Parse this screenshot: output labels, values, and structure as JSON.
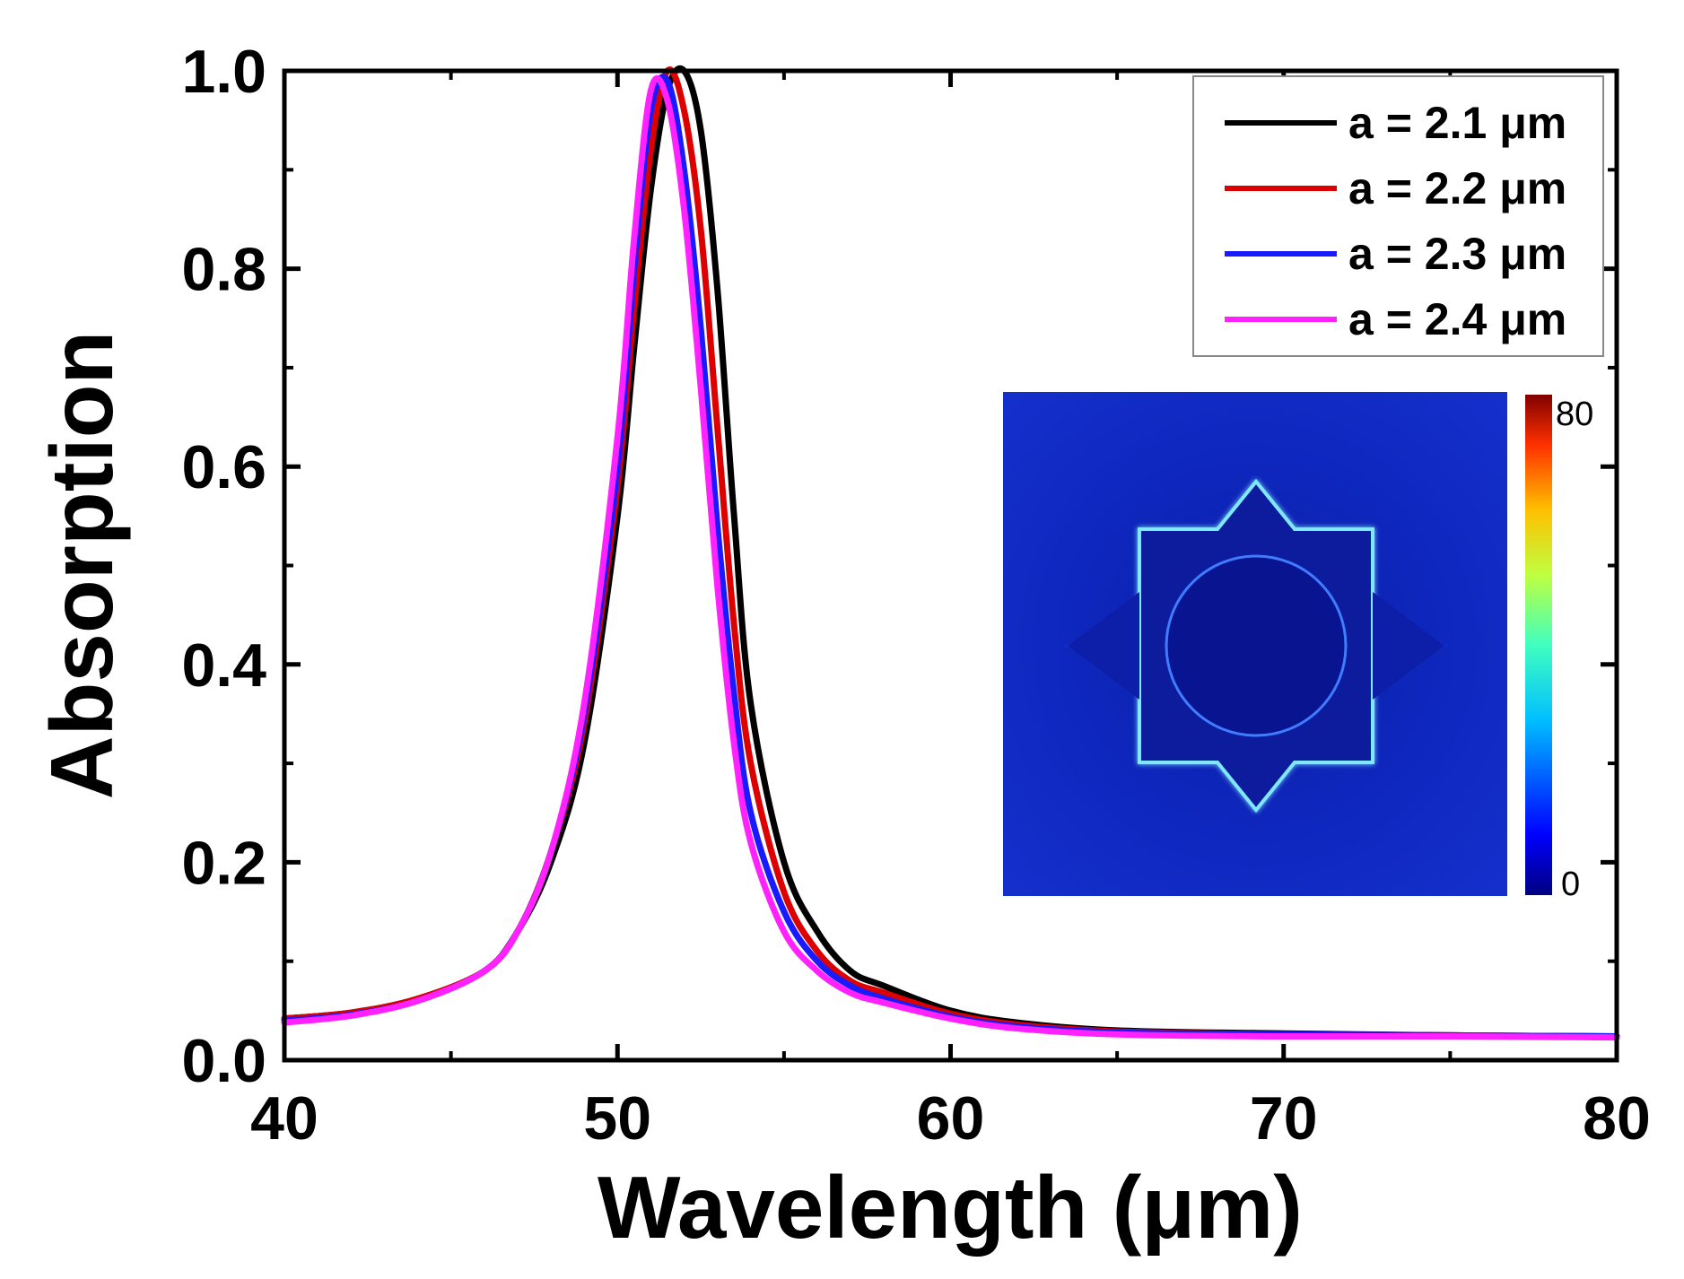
{
  "chart_data": {
    "type": "line",
    "title": "",
    "xlabel": "Wavelength (μm)",
    "ylabel": "Absorption",
    "xlim": [
      40,
      80
    ],
    "ylim": [
      0.0,
      1.0
    ],
    "xticks": [
      40,
      50,
      60,
      70,
      80
    ],
    "xtick_labels": [
      "40",
      "50",
      "60",
      "70",
      "80"
    ],
    "yticks": [
      0.0,
      0.2,
      0.4,
      0.6,
      0.8,
      1.0
    ],
    "ytick_labels": [
      "0.0",
      "0.2",
      "0.4",
      "0.6",
      "0.8",
      "1.0"
    ],
    "grid": false,
    "legend_position": "top-right",
    "series": [
      {
        "name": "a = 2.1 μm",
        "color": "#000000",
        "x": [
          40,
          42,
          44,
          46,
          47,
          48,
          49,
          50,
          50.5,
          51,
          51.5,
          52,
          52.5,
          53,
          53.5,
          54,
          55,
          56,
          57,
          58,
          60,
          62,
          65,
          70,
          75,
          80
        ],
        "y": [
          0.042,
          0.048,
          0.062,
          0.09,
          0.13,
          0.2,
          0.32,
          0.55,
          0.72,
          0.88,
          0.98,
          1.0,
          0.94,
          0.78,
          0.55,
          0.36,
          0.2,
          0.13,
          0.09,
          0.075,
          0.05,
          0.038,
          0.03,
          0.027,
          0.025,
          0.024
        ]
      },
      {
        "name": "a = 2.2 μm",
        "color": "#dd0000",
        "x": [
          40,
          42,
          44,
          46,
          47,
          48,
          49,
          50,
          50.5,
          51,
          51.5,
          52,
          52.5,
          53,
          53.5,
          54,
          55,
          56,
          57,
          58,
          60,
          62,
          65,
          70,
          75,
          80
        ],
        "y": [
          0.042,
          0.048,
          0.062,
          0.09,
          0.13,
          0.21,
          0.34,
          0.58,
          0.76,
          0.92,
          1.0,
          0.96,
          0.84,
          0.64,
          0.44,
          0.3,
          0.17,
          0.11,
          0.08,
          0.068,
          0.047,
          0.036,
          0.029,
          0.026,
          0.025,
          0.024
        ]
      },
      {
        "name": "a = 2.3 μm",
        "color": "#1a1aff",
        "x": [
          40,
          42,
          44,
          46,
          47,
          48,
          49,
          50,
          50.5,
          51,
          51.5,
          52,
          52.5,
          53,
          53.5,
          54,
          55,
          56,
          57,
          58,
          60,
          62,
          65,
          70,
          75,
          80
        ],
        "y": [
          0.04,
          0.046,
          0.06,
          0.09,
          0.13,
          0.21,
          0.35,
          0.6,
          0.8,
          0.96,
          0.99,
          0.9,
          0.74,
          0.54,
          0.37,
          0.25,
          0.15,
          0.1,
          0.075,
          0.062,
          0.044,
          0.034,
          0.028,
          0.026,
          0.025,
          0.024
        ]
      },
      {
        "name": "a = 2.4 μm",
        "color": "#ff22ff",
        "x": [
          40,
          42,
          44,
          46,
          47,
          48,
          49,
          50,
          50.5,
          51,
          51.5,
          52,
          52.5,
          53,
          53.5,
          54,
          55,
          56,
          57,
          58,
          60,
          62,
          65,
          70,
          75,
          80
        ],
        "y": [
          0.038,
          0.045,
          0.06,
          0.09,
          0.13,
          0.21,
          0.36,
          0.63,
          0.83,
          0.98,
          0.97,
          0.86,
          0.68,
          0.48,
          0.32,
          0.22,
          0.13,
          0.09,
          0.068,
          0.058,
          0.042,
          0.032,
          0.026,
          0.024,
          0.024,
          0.023
        ]
      }
    ],
    "inset": {
      "type": "heatmap",
      "description_colormap": "jet",
      "colorbar_max_label": "80",
      "colorbar_min_label": "0",
      "colorbar_max": 80,
      "colorbar_min": 0
    }
  }
}
